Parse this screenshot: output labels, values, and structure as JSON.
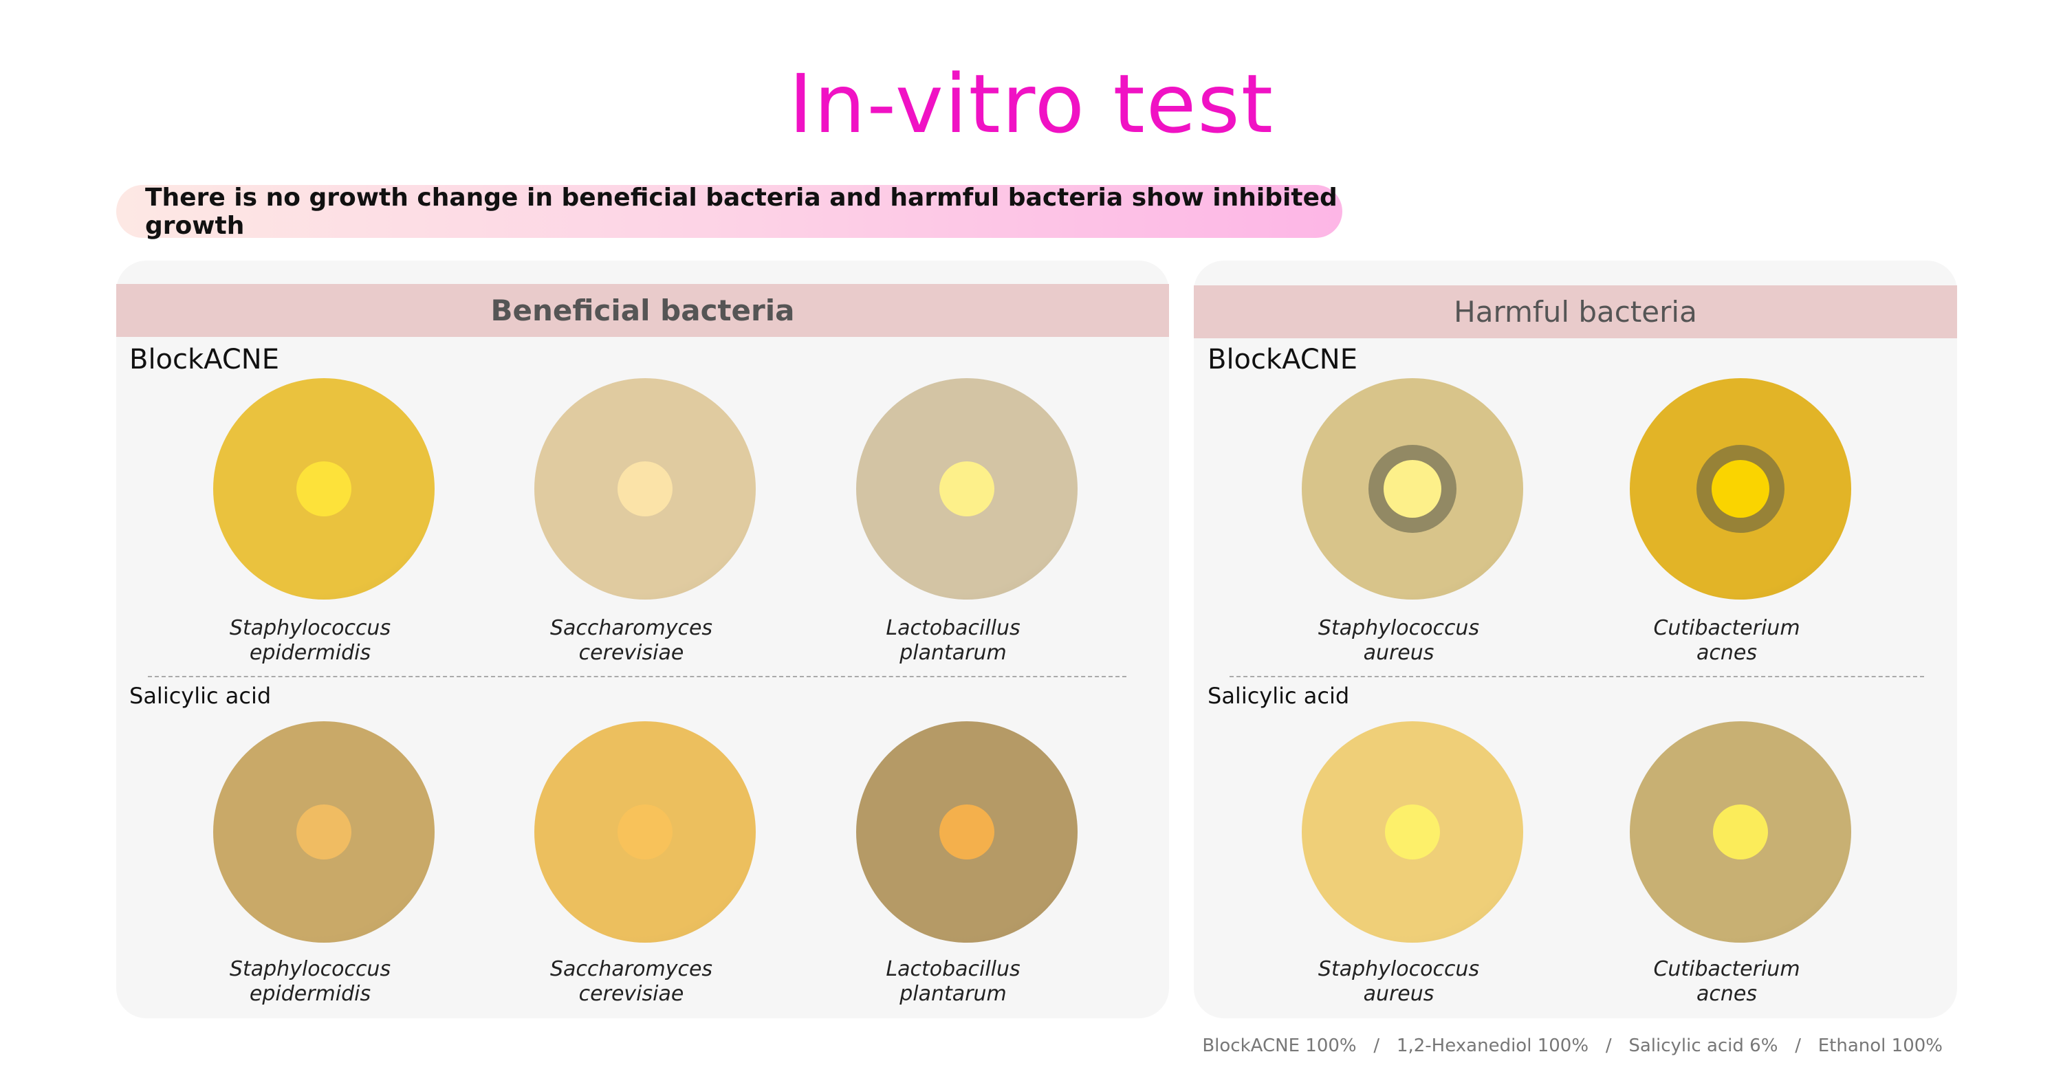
{
  "title": "In-vitro test",
  "banner": "There is no growth change in beneficial bacteria and harmful bacteria show inhibited growth",
  "beneficial": {
    "header": "Beneficial bacteria",
    "blockacne_label": "BlockACNE",
    "salicylic_label": "Salicylic acid",
    "blockacne": [
      {
        "l1": "Staphylococcus",
        "l2": "epidermidis",
        "plate": "#eac23e",
        "disk": "#fde23a"
      },
      {
        "l1": "Saccharomyces",
        "l2": "cerevisiae",
        "plate": "#e0cba0",
        "disk": "#fbe3a8"
      },
      {
        "l1": "Lactobacillus",
        "l2": "plantarum",
        "plate": "#d3c4a4",
        "disk": "#fdf08a"
      }
    ],
    "salicylic": [
      {
        "l1": "Staphylococcus",
        "l2": "epidermidis",
        "plate": "#c9a968",
        "disk": "#f0bc62"
      },
      {
        "l1": "Saccharomyces",
        "l2": "cerevisiae",
        "plate": "#ecbf5e",
        "disk": "#f8c25a"
      },
      {
        "l1": "Lactobacillus",
        "l2": "plantarum",
        "plate": "#b59a66",
        "disk": "#f4b04c"
      }
    ]
  },
  "harmful": {
    "header": "Harmful bacteria",
    "blockacne_label": "BlockACNE",
    "salicylic_label": "Salicylic acid",
    "blockacne": [
      {
        "l1": "Staphylococcus",
        "l2": "aureus",
        "plate": "#d8c48a",
        "disk": "#fdf08a"
      },
      {
        "l1": "Cutibacterium",
        "l2": "acnes",
        "plate": "#e2b427",
        "disk": "#fad400"
      }
    ],
    "salicylic": [
      {
        "l1": "Staphylococcus",
        "l2": "aureus",
        "plate": "#efcf78",
        "disk": "#fdf06a"
      },
      {
        "l1": "Cutibacterium",
        "l2": "acnes",
        "plate": "#c8b073",
        "disk": "#fbec5a"
      }
    ]
  },
  "footer": "BlockACNE 100%   /   1,2-Hexanediol 100%   /   Salicylic acid 6%   /   Ethanol 100%"
}
